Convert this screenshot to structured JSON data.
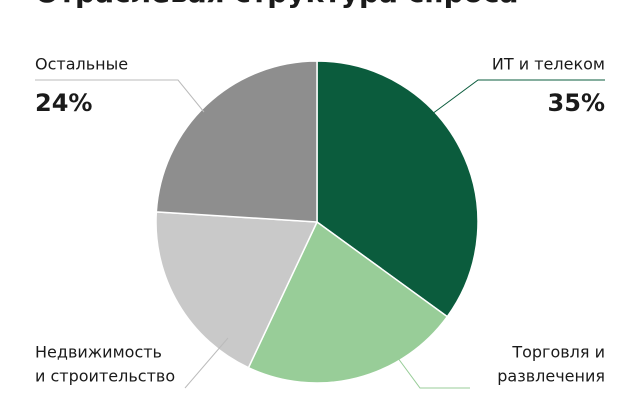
{
  "chart_data": {
    "type": "pie",
    "title": "Отраслевая структура спроса",
    "categories": [
      [
        "ИТ и телеком"
      ],
      [
        "Торговля и",
        "развлечения"
      ],
      [
        "Недвижимость",
        "и строительство"
      ],
      [
        "Остальные"
      ]
    ],
    "values": [
      35,
      22,
      19,
      24
    ],
    "value_labels": [
      "35%",
      null,
      null,
      "24%"
    ],
    "colors": [
      "#0b5c3d",
      "#98cd98",
      "#c9c9c9",
      "#8e8e8e"
    ]
  }
}
